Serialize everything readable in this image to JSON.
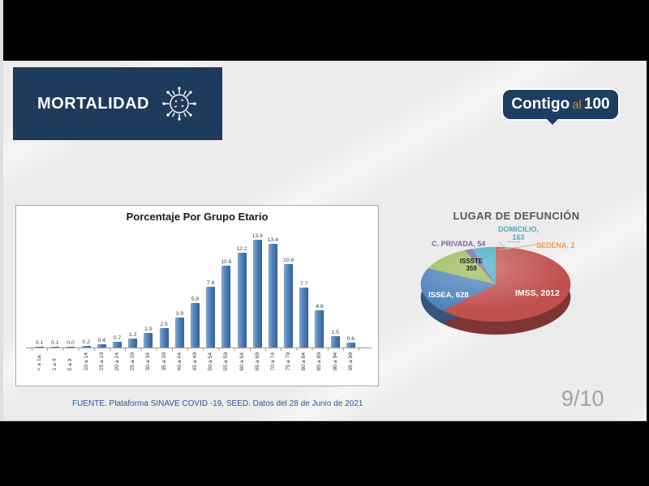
{
  "header": {
    "title": "MORTALIDAD"
  },
  "logo": {
    "part1": "Contigo",
    "part2": "al",
    "part3": "100"
  },
  "colors": {
    "header_navy": "#1e3a5c",
    "logo_navy": "#1d3d63",
    "logo_orange": "#cf8a33",
    "bar_blue": "#4f81bd",
    "slide_bg": "#ececec"
  },
  "chart_data": [
    {
      "type": "bar",
      "title": "Porcentaje Por Grupo Etario",
      "categories": [
        "< a 1a.",
        "1 a 4",
        "5 a 9",
        "10 a 14",
        "15 a 19",
        "20 a 24",
        "25 a 29",
        "30 a 34",
        "35 a 39",
        "40 a 44",
        "45 a 49",
        "50 a 54",
        "55 a 59",
        "60 a 64",
        "65 a 69",
        "70 a 74",
        "75 a 79",
        "80 a 84",
        "85 a 89",
        "90 a 94",
        "95 a 99"
      ],
      "values": [
        0.1,
        0.1,
        0.0,
        0.2,
        0.4,
        0.7,
        1.2,
        1.9,
        2.5,
        3.9,
        5.8,
        7.8,
        10.6,
        12.2,
        13.9,
        13.4,
        10.8,
        7.7,
        4.8,
        1.5,
        0.6
      ],
      "ylim": [
        0,
        14
      ],
      "bar_color": "#4f81bd",
      "value_labels_on": true,
      "legend": "none",
      "grid": false
    },
    {
      "type": "pie",
      "title": "LUGAR DE DEFUNCIÓN",
      "slices": [
        {
          "name": "IMSS",
          "value": 2012,
          "color": "#c0504d"
        },
        {
          "name": "ISSEA",
          "value": 628,
          "color": "#4f81bd"
        },
        {
          "name": "ISSSTE",
          "value": 359,
          "color": "#9bbb59"
        },
        {
          "name": "C. PRIVADA",
          "value": 54,
          "color": "#8064a2"
        },
        {
          "name": "DOMICILIO",
          "value": 163,
          "color": "#4bacc6"
        },
        {
          "name": "SEDENA",
          "value": 2,
          "color": "#f79646"
        }
      ],
      "display_labels": {
        "imss": "IMSS, 2012",
        "issea": "ISSEA, 628",
        "issste_line1": "ISSSTE",
        "issste_line2": "359",
        "privada": "C. PRIVADA, 54",
        "domicilio_line1": "DOMICILIO,",
        "domicilio_line2": "163",
        "sedena": "SEDENA, 2"
      },
      "style": "3d",
      "legend": "none"
    }
  ],
  "footer": {
    "source": "FUENTE. Plataforma SINAVE COVID -19, SEED. Datos del 28 de Junio de 2021",
    "page": "9/10"
  }
}
